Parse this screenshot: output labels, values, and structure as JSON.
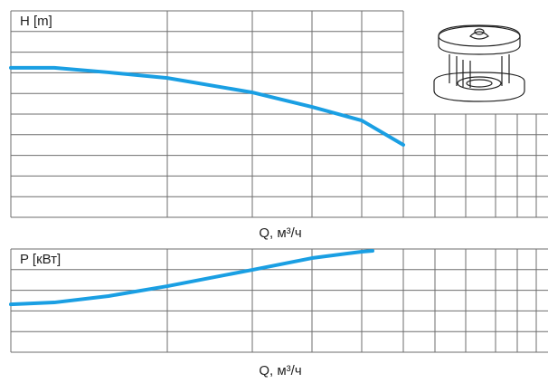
{
  "chart_data": [
    {
      "type": "line",
      "y_label": "H [m]",
      "x_label": "Q, м³/ч",
      "xlim": [
        0,
        594
      ],
      "xticks": [
        0,
        173,
        267,
        333,
        388,
        434,
        469,
        503,
        536,
        560,
        581
      ],
      "ylim": [
        0,
        10
      ],
      "yticks": [
        0,
        1,
        2,
        3,
        4,
        5,
        6,
        7,
        8,
        9,
        10
      ],
      "grid": true,
      "series": [
        {
          "color": "#1a9fe3",
          "x": [
            0,
            48,
            108,
            173,
            267,
            333,
            388,
            434
          ],
          "values": [
            7.24,
            7.24,
            7.02,
            6.75,
            6.05,
            5.35,
            4.69,
            3.51
          ]
        }
      ]
    },
    {
      "type": "line",
      "y_label": "P [кВт]",
      "x_label": "Q, м³/ч",
      "xlim": [
        0,
        594
      ],
      "xticks": [
        0,
        173,
        267,
        333,
        388,
        434,
        469,
        503,
        536,
        560,
        581
      ],
      "ylim": [
        0,
        5
      ],
      "yticks": [
        0,
        1,
        2,
        3,
        4,
        5
      ],
      "grid": true,
      "series": [
        {
          "color": "#1a9fe3",
          "x": [
            0,
            48,
            108,
            173,
            267,
            333,
            388,
            400
          ],
          "values": [
            2.32,
            2.41,
            2.72,
            3.2,
            3.99,
            4.56,
            4.87,
            4.91
          ]
        }
      ]
    }
  ]
}
